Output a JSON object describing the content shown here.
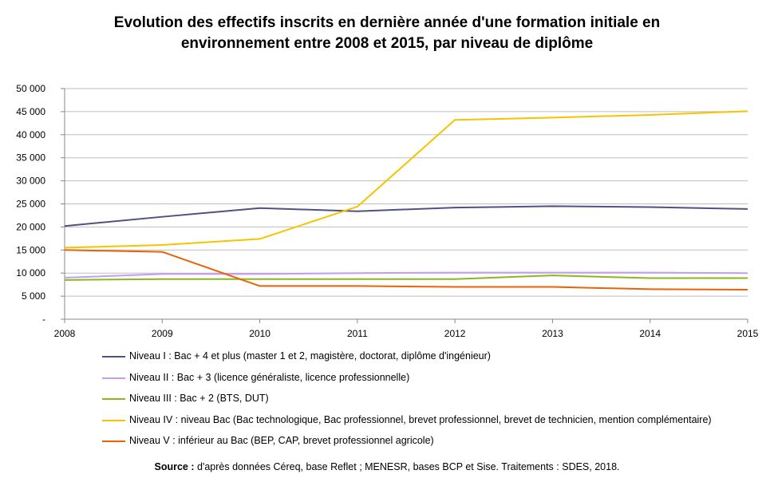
{
  "chart_data": {
    "type": "line",
    "title_line1": "Evolution des effectifs inscrits en dernière année d'une formation initiale en",
    "title_line2": "environnement entre 2008 et 2015, par niveau de diplôme",
    "x": [
      "2008",
      "2009",
      "2010",
      "2011",
      "2012",
      "2013",
      "2014",
      "2015"
    ],
    "y_ticks": [
      "-",
      "5 000",
      "10 000",
      "15 000",
      "20 000",
      "25 000",
      "30 000",
      "35 000",
      "40 000",
      "45 000",
      "50 000"
    ],
    "ylim": [
      0,
      50000
    ],
    "grid": true,
    "legend_position": "bottom",
    "series": [
      {
        "name": "Niveau I : Bac + 4 et plus (master 1 et 2, magistère, doctorat, diplôme d'ingénieur)",
        "color": "#4f5181",
        "values": [
          20200,
          22200,
          24100,
          23400,
          24200,
          24500,
          24300,
          23900
        ]
      },
      {
        "name": "Niveau II :  Bac + 3 (licence généraliste, licence professionnelle)",
        "color": "#c59cf0",
        "values": [
          9000,
          9800,
          9800,
          10000,
          10100,
          10100,
          10100,
          10000
        ]
      },
      {
        "name": "Niveau III : Bac + 2 (BTS, DUT)",
        "color": "#8ab81c",
        "values": [
          8500,
          8700,
          8700,
          8700,
          8700,
          9500,
          8900,
          8900
        ]
      },
      {
        "name": "Niveau IV : niveau Bac (Bac technologique, Bac professionnel, brevet professionnel, brevet de technicien, mention complémentaire)",
        "color": "#f5c400",
        "values": [
          15500,
          16100,
          17400,
          24400,
          43200,
          43700,
          44300,
          45100
        ]
      },
      {
        "name": "Niveau V : inférieur au Bac (BEP, CAP, brevet professionnel agricole)",
        "color": "#e8620a",
        "values": [
          15000,
          14600,
          7200,
          7200,
          7000,
          7000,
          6500,
          6400
        ]
      }
    ]
  },
  "source": {
    "label": "Source :",
    "text": " d'après données Céreq, base Reflet ; MENESR, bases BCP et Sise. Traitements : SDES, 2018."
  }
}
